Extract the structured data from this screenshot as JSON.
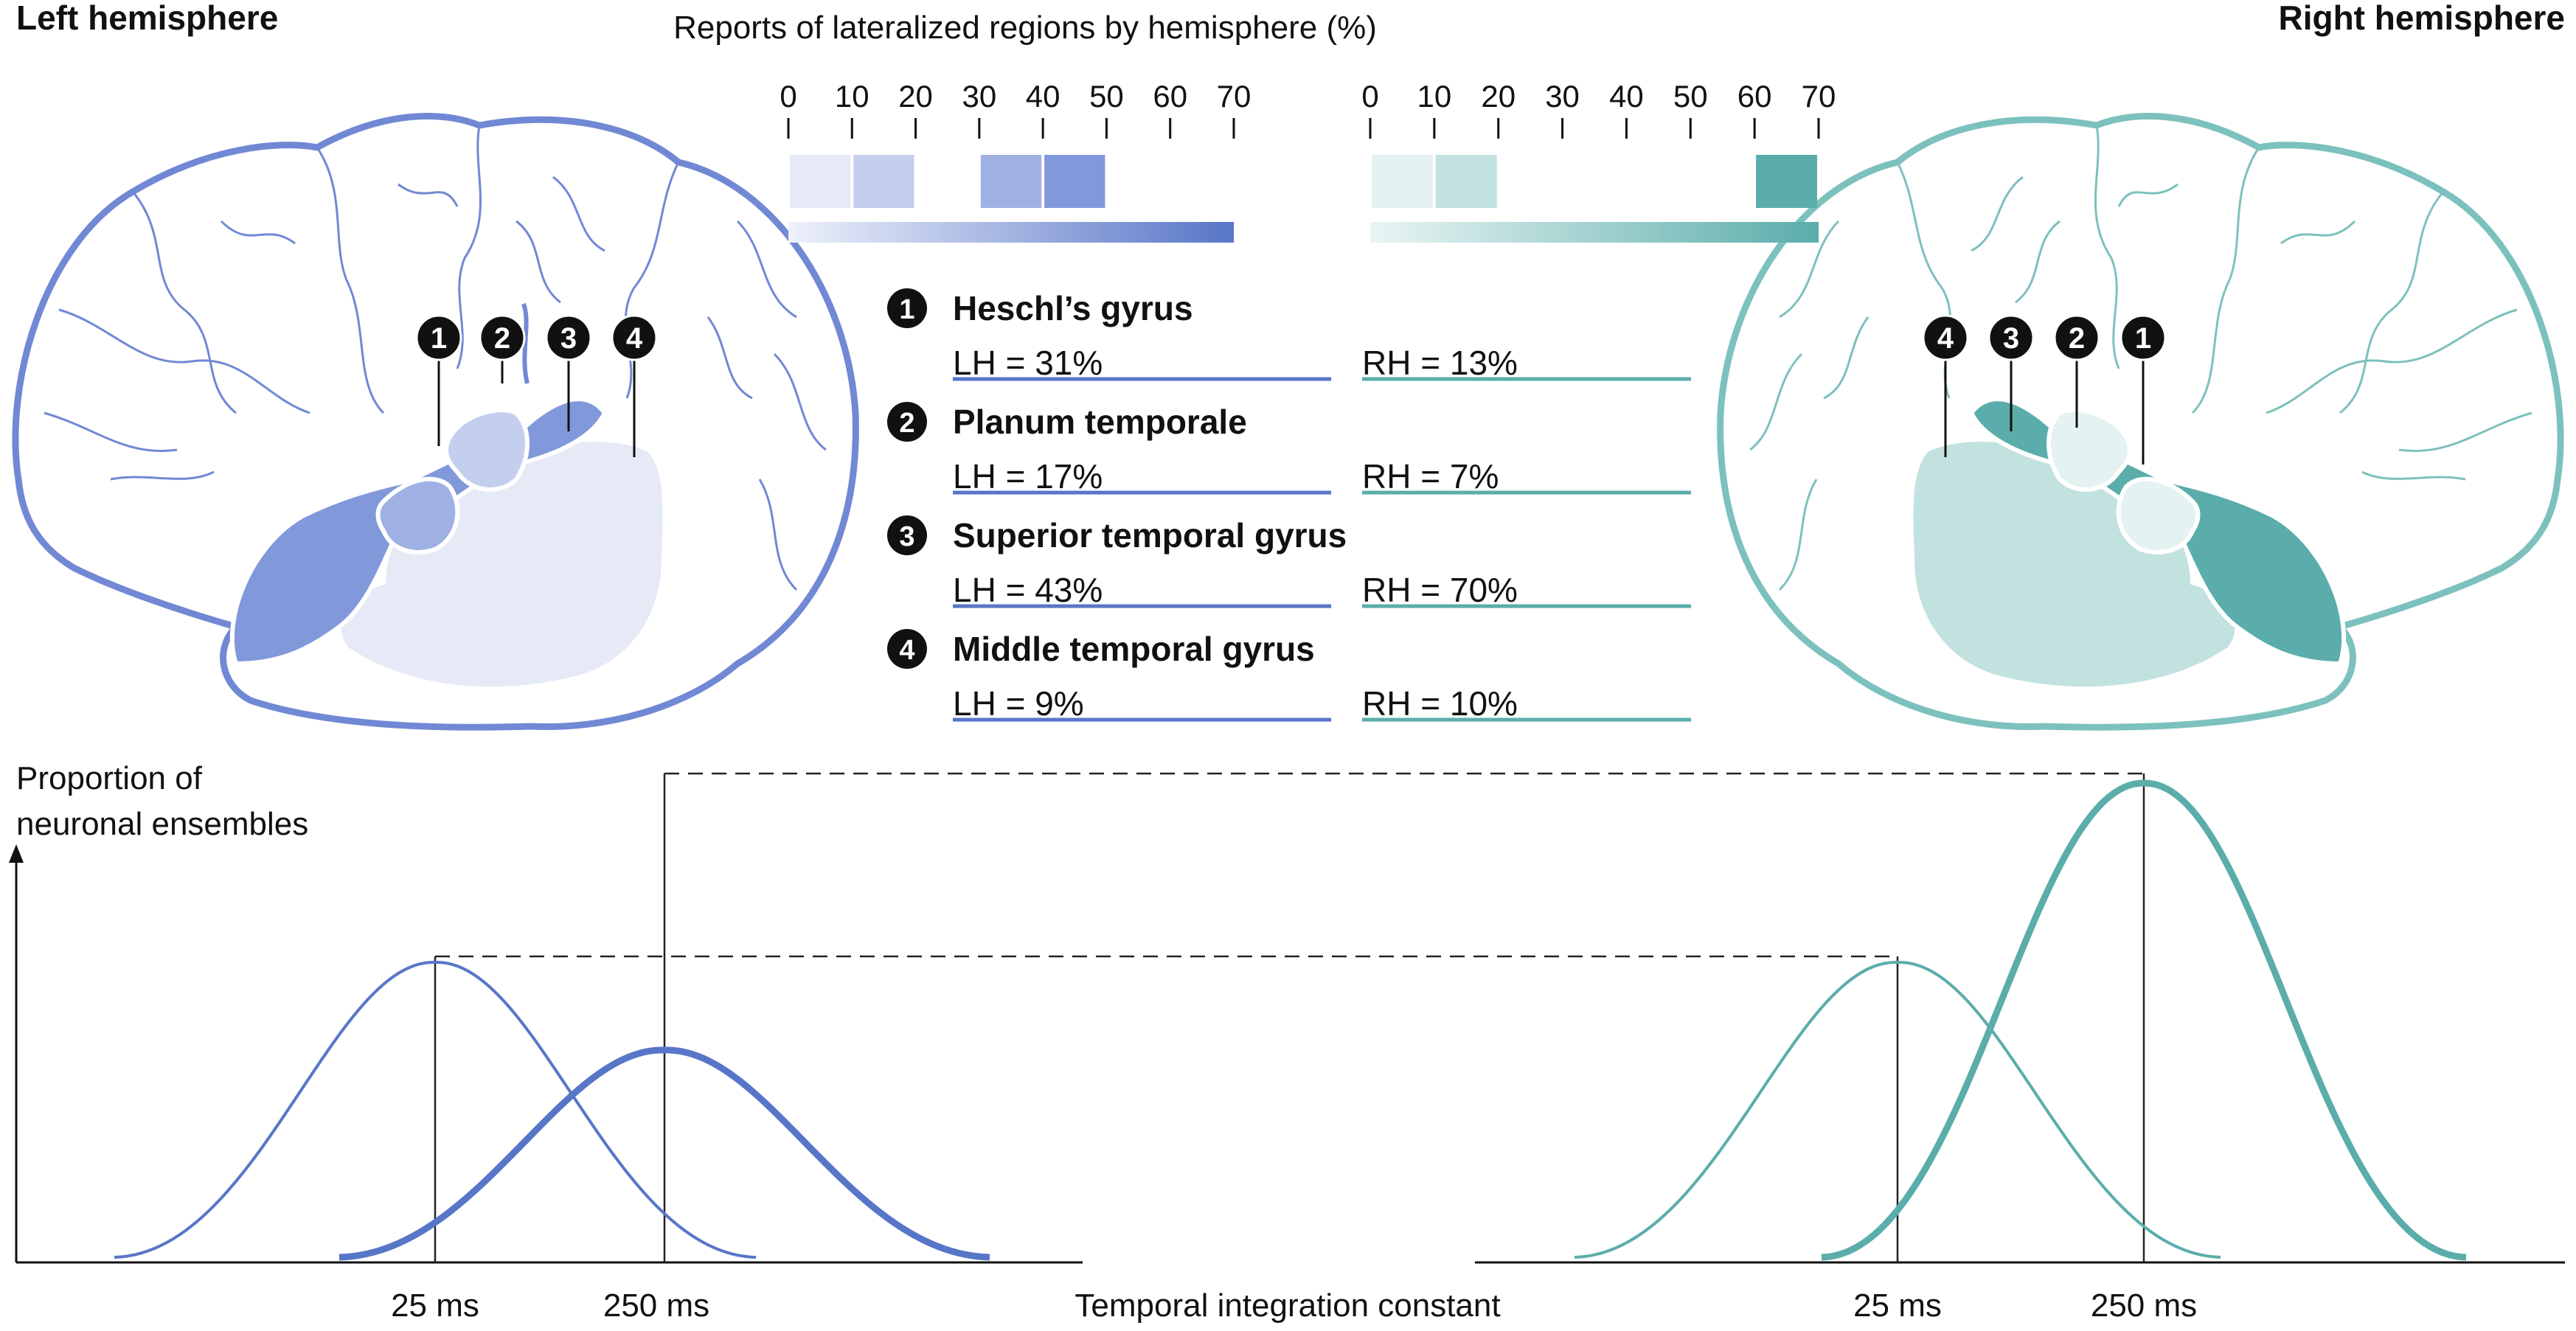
{
  "headings": {
    "left": "Left hemisphere",
    "right": "Right hemisphere"
  },
  "scale": {
    "title": "Reports of lateralized regions by hemisphere (%)",
    "ticks": [
      "0",
      "10",
      "20",
      "30",
      "40",
      "50",
      "60",
      "70"
    ],
    "max": 70
  },
  "colors": {
    "left": "#5876c8",
    "left_shades": [
      "#e6eaf7",
      "#c4cfee",
      "#9fb1e2",
      "#8198db"
    ],
    "right": "#5aadaa",
    "right_shades": [
      "#e4f2f1",
      "#c2e2df",
      "#5aadaa"
    ]
  },
  "regions": [
    {
      "num": "1",
      "name": "Heschl’s gyrus",
      "lh_label": "LH = 31%",
      "rh_label": "RH = 13%",
      "lh": 31,
      "rh": 13
    },
    {
      "num": "2",
      "name": "Planum temporale",
      "lh_label": "LH = 17%",
      "rh_label": "RH = 7%",
      "lh": 17,
      "rh": 7
    },
    {
      "num": "3",
      "name": "Superior temporal gyrus",
      "lh_label": "LH = 43%",
      "rh_label": "RH = 70%",
      "lh": 43,
      "rh": 70
    },
    {
      "num": "4",
      "name": "Middle temporal gyrus",
      "lh_label": "LH = 9%",
      "rh_label": "RH = 10%",
      "lh": 9,
      "rh": 10
    }
  ],
  "graph": {
    "ylabel_line1": "Proportion of",
    "ylabel_line2": "neuronal ensembles",
    "xlabel": "Temporal integration constant",
    "tick_25": "25 ms",
    "tick_250": "250 ms"
  }
}
